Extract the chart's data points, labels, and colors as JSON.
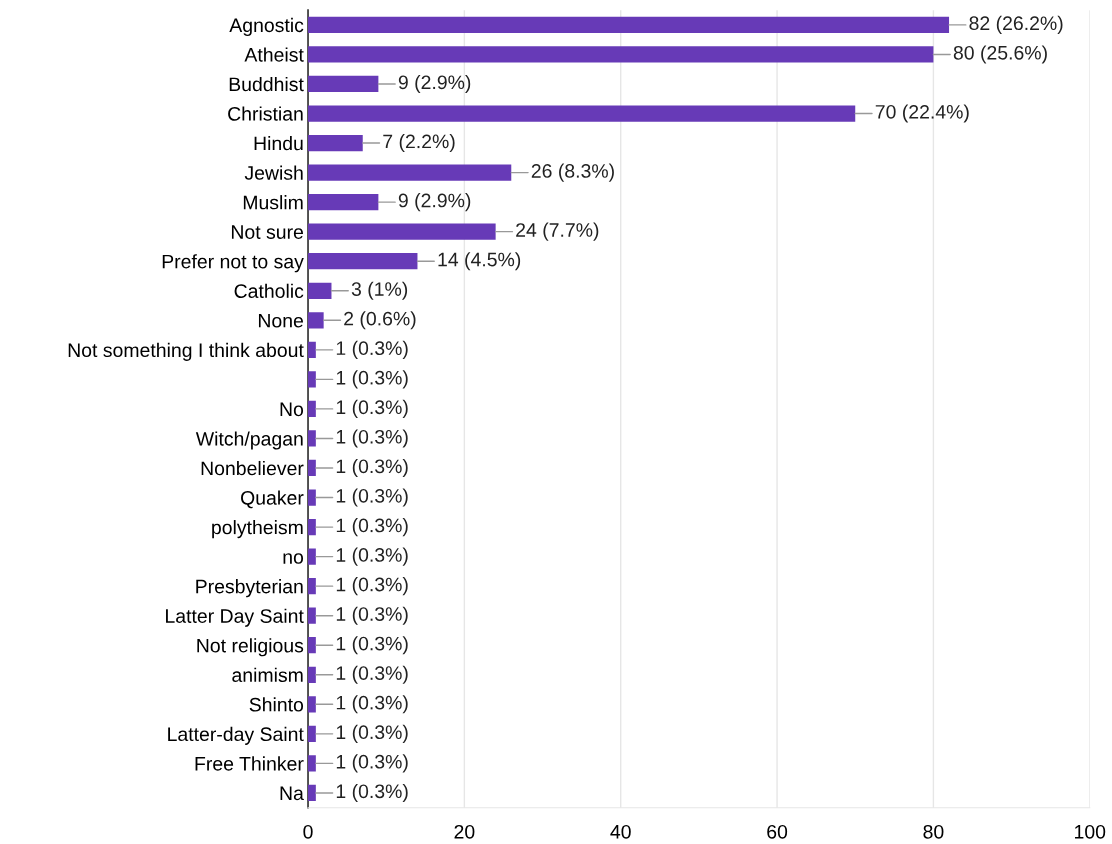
{
  "chart_data": {
    "type": "bar",
    "orientation": "horizontal",
    "categories": [
      "Agnostic",
      "Atheist",
      "Buddhist",
      "Christian",
      "Hindu",
      "Jewish",
      "Muslim",
      "Not sure",
      "Prefer not to say",
      "Catholic",
      "None",
      "Not something I think about",
      null,
      "No",
      "Witch/pagan",
      "Nonbeliever",
      "Quaker",
      "polytheism",
      "no",
      "Presbyterian",
      "Latter Day Saint",
      "Not religious",
      "animism",
      "Shinto",
      "Latter-day Saint",
      "Free Thinker",
      "Na"
    ],
    "values": [
      82,
      80,
      9,
      70,
      7,
      26,
      9,
      24,
      14,
      3,
      2,
      1,
      1,
      1,
      1,
      1,
      1,
      1,
      1,
      1,
      1,
      1,
      1,
      1,
      1,
      1,
      1
    ],
    "value_labels": [
      "82 (26.2%)",
      "80 (25.6%)",
      "9 (2.9%)",
      "70 (22.4%)",
      "7 (2.2%)",
      "26 (8.3%)",
      "9 (2.9%)",
      "24 (7.7%)",
      "14 (4.5%)",
      "3 (1%)",
      "2 (0.6%)",
      "1 (0.3%)",
      "1 (0.3%)",
      "1 (0.3%)",
      "1 (0.3%)",
      "1 (0.3%)",
      "1 (0.3%)",
      "1 (0.3%)",
      "1 (0.3%)",
      "1 (0.3%)",
      "1 (0.3%)",
      "1 (0.3%)",
      "1 (0.3%)",
      "1 (0.3%)",
      "1 (0.3%)",
      "1 (0.3%)",
      "1 (0.3%)"
    ],
    "color": "#673ab7",
    "xlim": [
      0,
      100
    ],
    "xticks": [
      0,
      20,
      40,
      60,
      80,
      100
    ],
    "grid": "x"
  }
}
